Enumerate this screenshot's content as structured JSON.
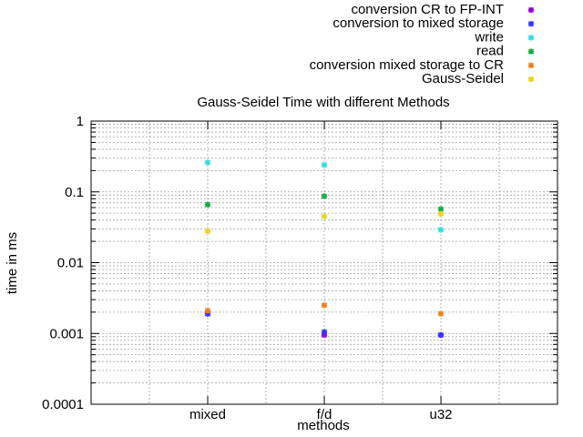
{
  "chart_data": {
    "type": "scatter",
    "title": "Gauss-Seidel Time with different Methods",
    "xlabel": "methods",
    "ylabel": "time in ms",
    "yscale": "log",
    "ylim": [
      0.0001,
      1
    ],
    "grid": true,
    "legend_position": "top-right",
    "categories": [
      "mixed",
      "f/d",
      "u32"
    ],
    "y_tick_labels": [
      "0.0001",
      "0.001",
      "0.01",
      "0.1",
      "1"
    ],
    "series": [
      {
        "name": "conversion CR to FP-INT",
        "color": "#9400d3",
        "values": [
          0.0019,
          0.00095,
          0.00095
        ]
      },
      {
        "name": "conversion to mixed storage",
        "color": "#3333ff",
        "values": [
          0.0019,
          0.00105,
          0.00095
        ]
      },
      {
        "name": "write",
        "color": "#33dddd",
        "values": [
          0.26,
          0.24,
          0.029
        ]
      },
      {
        "name": "read",
        "color": "#11aa44",
        "values": [
          0.066,
          0.087,
          0.057
        ]
      },
      {
        "name": "conversion mixed storage to CR",
        "color": "#f07f1e",
        "values": [
          0.0021,
          0.0025,
          0.0019
        ]
      },
      {
        "name": "Gauss-Seidel",
        "color": "#e8d41c",
        "values": [
          0.028,
          0.045,
          0.049
        ]
      }
    ]
  }
}
